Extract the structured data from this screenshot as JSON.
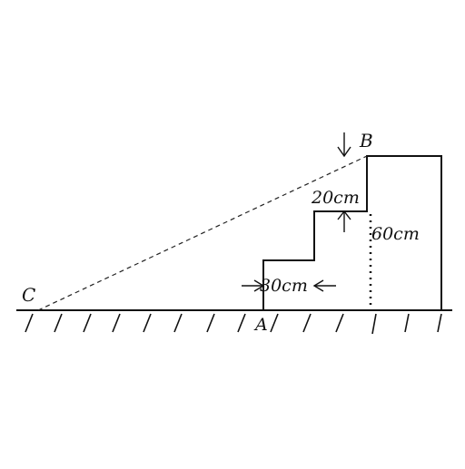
{
  "diagram": {
    "points": {
      "A": "A",
      "B": "B",
      "C": "C"
    },
    "dimensions": {
      "step_width": "30cm",
      "step_height": "20cm",
      "total_height": "60cm"
    }
  },
  "colors": {
    "ink": "#111111",
    "background": "#ffffff"
  }
}
